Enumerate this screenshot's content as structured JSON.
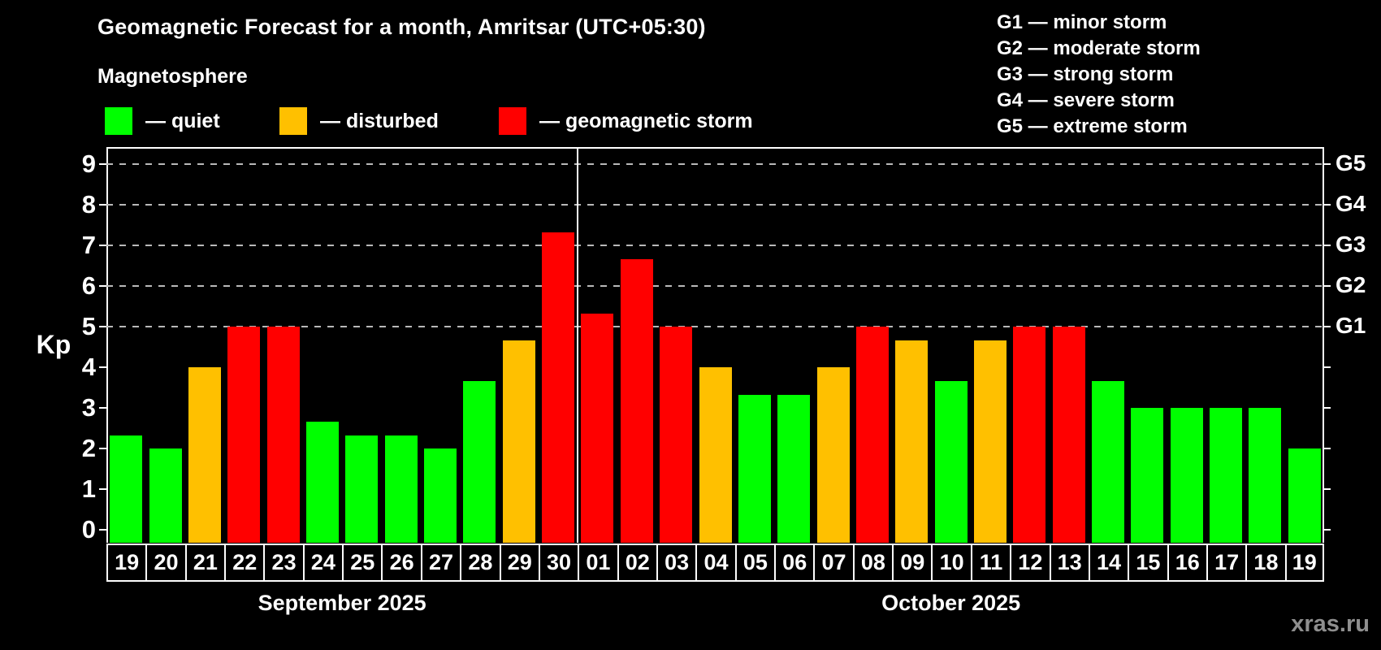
{
  "header": {
    "title": "Geomagnetic Forecast for a month, Amritsar (UTC+05:30)",
    "subtitle": "Magnetosphere"
  },
  "legend": {
    "items": [
      {
        "key": "quiet",
        "label": "— quiet",
        "color": "#00ff00"
      },
      {
        "key": "disturbed",
        "label": "— disturbed",
        "color": "#ffc000"
      },
      {
        "key": "storm",
        "label": "— geomagnetic storm",
        "color": "#ff0000"
      }
    ]
  },
  "g_legend": {
    "items": [
      "G1 — minor storm",
      "G2 — moderate storm",
      "G3 — strong storm",
      "G4 — severe storm",
      "G5 — extreme storm"
    ]
  },
  "axes": {
    "kp_label": "Kp",
    "y_ticks": [
      0,
      1,
      2,
      3,
      4,
      5,
      6,
      7,
      8,
      9
    ],
    "gridlines_at": [
      5,
      6,
      7,
      8,
      9
    ],
    "right_scale": [
      {
        "label": "G1",
        "kp": 5
      },
      {
        "label": "G2",
        "kp": 6
      },
      {
        "label": "G3",
        "kp": 7
      },
      {
        "label": "G4",
        "kp": 8
      },
      {
        "label": "G5",
        "kp": 9
      }
    ]
  },
  "chart_data": {
    "type": "bar",
    "title": "Geomagnetic Forecast for a month, Amritsar (UTC+05:30)",
    "subtitle": "Magnetosphere",
    "ylabel": "Kp",
    "ylim": [
      0,
      9.5
    ],
    "grid": "dashed horizontal gridlines at Kp 5,6,7,8,9",
    "legend_position": "top-left",
    "condition_colors": {
      "quiet": "#00ff00",
      "disturbed": "#ffc000",
      "storm": "#ff0000"
    },
    "points": [
      {
        "month": "September 2025",
        "day": "19",
        "kp": 2.33,
        "condition": "quiet"
      },
      {
        "month": "September 2025",
        "day": "20",
        "kp": 2.0,
        "condition": "quiet"
      },
      {
        "month": "September 2025",
        "day": "21",
        "kp": 4.0,
        "condition": "disturbed"
      },
      {
        "month": "September 2025",
        "day": "22",
        "kp": 5.0,
        "condition": "storm"
      },
      {
        "month": "September 2025",
        "day": "23",
        "kp": 5.0,
        "condition": "storm"
      },
      {
        "month": "September 2025",
        "day": "24",
        "kp": 2.67,
        "condition": "quiet"
      },
      {
        "month": "September 2025",
        "day": "25",
        "kp": 2.33,
        "condition": "quiet"
      },
      {
        "month": "September 2025",
        "day": "26",
        "kp": 2.33,
        "condition": "quiet"
      },
      {
        "month": "September 2025",
        "day": "27",
        "kp": 2.0,
        "condition": "quiet"
      },
      {
        "month": "September 2025",
        "day": "28",
        "kp": 3.67,
        "condition": "quiet"
      },
      {
        "month": "September 2025",
        "day": "29",
        "kp": 4.67,
        "condition": "disturbed"
      },
      {
        "month": "September 2025",
        "day": "30",
        "kp": 7.33,
        "condition": "storm"
      },
      {
        "month": "October 2025",
        "day": "01",
        "kp": 5.33,
        "condition": "storm"
      },
      {
        "month": "October 2025",
        "day": "02",
        "kp": 6.67,
        "condition": "storm"
      },
      {
        "month": "October 2025",
        "day": "03",
        "kp": 5.0,
        "condition": "storm"
      },
      {
        "month": "October 2025",
        "day": "04",
        "kp": 4.0,
        "condition": "disturbed"
      },
      {
        "month": "October 2025",
        "day": "05",
        "kp": 3.33,
        "condition": "quiet"
      },
      {
        "month": "October 2025",
        "day": "06",
        "kp": 3.33,
        "condition": "quiet"
      },
      {
        "month": "October 2025",
        "day": "07",
        "kp": 4.0,
        "condition": "disturbed"
      },
      {
        "month": "October 2025",
        "day": "08",
        "kp": 5.0,
        "condition": "storm"
      },
      {
        "month": "October 2025",
        "day": "09",
        "kp": 4.67,
        "condition": "disturbed"
      },
      {
        "month": "October 2025",
        "day": "10",
        "kp": 3.67,
        "condition": "quiet"
      },
      {
        "month": "October 2025",
        "day": "11",
        "kp": 4.67,
        "condition": "disturbed"
      },
      {
        "month": "October 2025",
        "day": "12",
        "kp": 5.0,
        "condition": "storm"
      },
      {
        "month": "October 2025",
        "day": "13",
        "kp": 5.0,
        "condition": "storm"
      },
      {
        "month": "October 2025",
        "day": "14",
        "kp": 3.67,
        "condition": "quiet"
      },
      {
        "month": "October 2025",
        "day": "15",
        "kp": 3.0,
        "condition": "quiet"
      },
      {
        "month": "October 2025",
        "day": "16",
        "kp": 3.0,
        "condition": "quiet"
      },
      {
        "month": "October 2025",
        "day": "17",
        "kp": 3.0,
        "condition": "quiet"
      },
      {
        "month": "October 2025",
        "day": "18",
        "kp": 3.0,
        "condition": "quiet"
      },
      {
        "month": "October 2025",
        "day": "19",
        "kp": 2.0,
        "condition": "quiet"
      }
    ]
  },
  "x_axis": {
    "months": [
      {
        "label": "September 2025",
        "day_count": 12
      },
      {
        "label": "October 2025",
        "day_count": 19
      }
    ]
  },
  "watermark": "xras.ru",
  "colors": {
    "background": "#000000",
    "quiet": "#00ff00",
    "disturbed": "#ffc000",
    "storm": "#ff0000",
    "grid": "#b9b9b9",
    "text": "#ffffff",
    "watermark": "#8f8f8f"
  }
}
